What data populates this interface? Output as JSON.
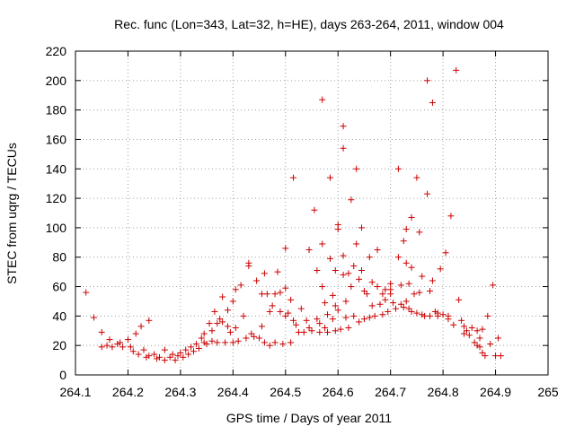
{
  "chart_data": {
    "type": "scatter",
    "title": "Rec. func (Lon=343, Lat=32, h=HE), days 263-264, 2011, window 004",
    "xlabel": "GPS time / Days of year 2011",
    "ylabel": "STEC from uqrg / TECUs",
    "xlim": [
      264.1,
      265.0
    ],
    "ylim": [
      0,
      220
    ],
    "xticks": [
      "264.1",
      "264.2",
      "264.3",
      "264.4",
      "264.5",
      "264.6",
      "264.7",
      "264.8",
      "264.9",
      "265"
    ],
    "yticks": [
      "0",
      "20",
      "40",
      "60",
      "80",
      "100",
      "120",
      "140",
      "160",
      "180",
      "200",
      "220"
    ],
    "grid": true,
    "legend": "none",
    "marker": "plus",
    "marker_color": "#cc0000",
    "series": [
      {
        "points": [
          [
            264.12,
            56
          ],
          [
            264.135,
            39
          ],
          [
            264.15,
            29
          ],
          [
            264.15,
            19
          ],
          [
            264.16,
            20
          ],
          [
            264.165,
            24
          ],
          [
            264.17,
            19
          ],
          [
            264.18,
            21
          ],
          [
            264.185,
            22
          ],
          [
            264.19,
            19
          ],
          [
            264.2,
            24
          ],
          [
            264.205,
            19
          ],
          [
            264.21,
            16
          ],
          [
            264.215,
            28
          ],
          [
            264.22,
            14
          ],
          [
            264.225,
            33
          ],
          [
            264.23,
            17
          ],
          [
            264.235,
            12
          ],
          [
            264.24,
            37
          ],
          [
            264.24,
            13
          ],
          [
            264.25,
            14
          ],
          [
            264.255,
            11
          ],
          [
            264.26,
            12
          ],
          [
            264.27,
            10
          ],
          [
            264.27,
            17
          ],
          [
            264.28,
            12
          ],
          [
            264.285,
            14
          ],
          [
            264.29,
            10
          ],
          [
            264.295,
            13
          ],
          [
            264.3,
            15
          ],
          [
            264.305,
            12
          ],
          [
            264.31,
            17
          ],
          [
            264.315,
            14
          ],
          [
            264.32,
            19
          ],
          [
            264.325,
            16
          ],
          [
            264.33,
            21
          ],
          [
            264.335,
            18
          ],
          [
            264.34,
            25
          ],
          [
            264.345,
            22
          ],
          [
            264.345,
            28
          ],
          [
            264.35,
            21
          ],
          [
            264.355,
            35
          ],
          [
            264.36,
            30
          ],
          [
            264.36,
            23
          ],
          [
            264.365,
            43
          ],
          [
            264.37,
            22
          ],
          [
            264.37,
            35
          ],
          [
            264.375,
            38
          ],
          [
            264.38,
            53
          ],
          [
            264.38,
            36
          ],
          [
            264.385,
            22
          ],
          [
            264.39,
            33
          ],
          [
            264.39,
            44
          ],
          [
            264.395,
            29
          ],
          [
            264.4,
            50
          ],
          [
            264.4,
            22
          ],
          [
            264.405,
            58
          ],
          [
            264.405,
            32
          ],
          [
            264.41,
            23
          ],
          [
            264.415,
            61
          ],
          [
            264.42,
            40
          ],
          [
            264.425,
            25
          ],
          [
            264.43,
            76
          ],
          [
            264.43,
            74
          ],
          [
            264.435,
            28
          ],
          [
            264.44,
            26
          ],
          [
            264.445,
            64
          ],
          [
            264.45,
            25
          ],
          [
            264.455,
            55
          ],
          [
            264.455,
            33
          ],
          [
            264.46,
            69
          ],
          [
            264.46,
            22
          ],
          [
            264.465,
            55
          ],
          [
            264.47,
            20
          ],
          [
            264.47,
            43
          ],
          [
            264.475,
            47
          ],
          [
            264.48,
            55
          ],
          [
            264.48,
            22
          ],
          [
            264.485,
            70
          ],
          [
            264.49,
            43
          ],
          [
            264.49,
            56
          ],
          [
            264.495,
            21
          ],
          [
            264.5,
            86
          ],
          [
            264.5,
            40
          ],
          [
            264.5,
            59
          ],
          [
            264.505,
            42
          ],
          [
            264.51,
            51
          ],
          [
            264.51,
            22
          ],
          [
            264.515,
            134
          ],
          [
            264.515,
            37
          ],
          [
            264.52,
            34
          ],
          [
            264.525,
            29
          ],
          [
            264.53,
            45
          ],
          [
            264.535,
            29
          ],
          [
            264.54,
            37
          ],
          [
            264.545,
            85
          ],
          [
            264.545,
            32
          ],
          [
            264.55,
            30
          ],
          [
            264.555,
            112
          ],
          [
            264.56,
            71
          ],
          [
            264.56,
            38
          ],
          [
            264.565,
            35
          ],
          [
            264.565,
            29
          ],
          [
            264.57,
            187
          ],
          [
            264.57,
            89
          ],
          [
            264.57,
            60
          ],
          [
            264.575,
            32
          ],
          [
            264.575,
            49
          ],
          [
            264.58,
            41
          ],
          [
            264.58,
            29
          ],
          [
            264.585,
            134
          ],
          [
            264.585,
            79
          ],
          [
            264.59,
            54
          ],
          [
            264.59,
            38
          ],
          [
            264.595,
            71
          ],
          [
            264.595,
            47
          ],
          [
            264.595,
            30
          ],
          [
            264.6,
            102
          ],
          [
            264.6,
            99
          ],
          [
            264.6,
            44
          ],
          [
            264.605,
            31
          ],
          [
            264.61,
            169
          ],
          [
            264.61,
            154
          ],
          [
            264.61,
            81
          ],
          [
            264.61,
            68
          ],
          [
            264.615,
            50
          ],
          [
            264.615,
            39
          ],
          [
            264.62,
            69
          ],
          [
            264.62,
            32
          ],
          [
            264.625,
            119
          ],
          [
            264.625,
            60
          ],
          [
            264.63,
            74
          ],
          [
            264.63,
            40
          ],
          [
            264.635,
            140
          ],
          [
            264.635,
            89
          ],
          [
            264.64,
            65
          ],
          [
            264.64,
            36
          ],
          [
            264.645,
            100
          ],
          [
            264.645,
            71
          ],
          [
            264.65,
            57
          ],
          [
            264.65,
            38
          ],
          [
            264.655,
            55
          ],
          [
            264.66,
            80
          ],
          [
            264.66,
            39
          ],
          [
            264.665,
            63
          ],
          [
            264.665,
            47
          ],
          [
            264.67,
            40
          ],
          [
            264.675,
            60
          ],
          [
            264.675,
            85
          ],
          [
            264.68,
            48
          ],
          [
            264.685,
            55
          ],
          [
            264.685,
            41
          ],
          [
            264.69,
            58
          ],
          [
            264.69,
            51
          ],
          [
            264.695,
            43
          ],
          [
            264.7,
            62
          ],
          [
            264.7,
            55
          ],
          [
            264.705,
            49
          ],
          [
            264.71,
            45
          ],
          [
            264.715,
            140
          ],
          [
            264.715,
            80
          ],
          [
            264.72,
            61
          ],
          [
            264.72,
            48
          ],
          [
            264.725,
            91
          ],
          [
            264.725,
            46
          ],
          [
            264.73,
            99
          ],
          [
            264.73,
            76
          ],
          [
            264.735,
            45
          ],
          [
            264.735,
            62
          ],
          [
            264.74,
            107
          ],
          [
            264.74,
            73
          ],
          [
            264.74,
            43
          ],
          [
            264.745,
            55
          ],
          [
            264.75,
            134
          ],
          [
            264.75,
            42
          ],
          [
            264.755,
            97
          ],
          [
            264.755,
            56
          ],
          [
            264.76,
            67
          ],
          [
            264.765,
            40
          ],
          [
            264.77,
            200
          ],
          [
            264.77,
            123
          ],
          [
            264.775,
            40
          ],
          [
            264.775,
            57
          ],
          [
            264.78,
            185
          ],
          [
            264.78,
            64
          ],
          [
            264.785,
            43
          ],
          [
            264.79,
            40
          ],
          [
            264.795,
            72
          ],
          [
            264.8,
            41
          ],
          [
            264.805,
            83
          ],
          [
            264.81,
            38
          ],
          [
            264.815,
            108
          ],
          [
            264.82,
            34
          ],
          [
            264.825,
            207
          ],
          [
            264.83,
            51
          ],
          [
            264.835,
            37
          ],
          [
            264.84,
            33
          ],
          [
            264.845,
            30
          ],
          [
            264.85,
            27
          ],
          [
            264.855,
            32
          ],
          [
            264.86,
            22
          ],
          [
            264.865,
            30
          ],
          [
            264.87,
            19
          ],
          [
            264.875,
            31
          ],
          [
            264.88,
            13
          ],
          [
            264.885,
            40
          ],
          [
            264.89,
            21
          ],
          [
            264.895,
            61
          ],
          [
            264.9,
            13
          ],
          [
            264.905,
            25
          ],
          [
            264.91,
            13
          ],
          [
            264.875,
            15
          ],
          [
            264.87,
            25
          ],
          [
            264.865,
            20
          ],
          [
            264.84,
            28
          ],
          [
            264.81,
            40
          ],
          [
            264.79,
            42
          ],
          [
            264.76,
            41
          ],
          [
            264.73,
            50
          ],
          [
            264.7,
            58
          ]
        ]
      }
    ]
  }
}
